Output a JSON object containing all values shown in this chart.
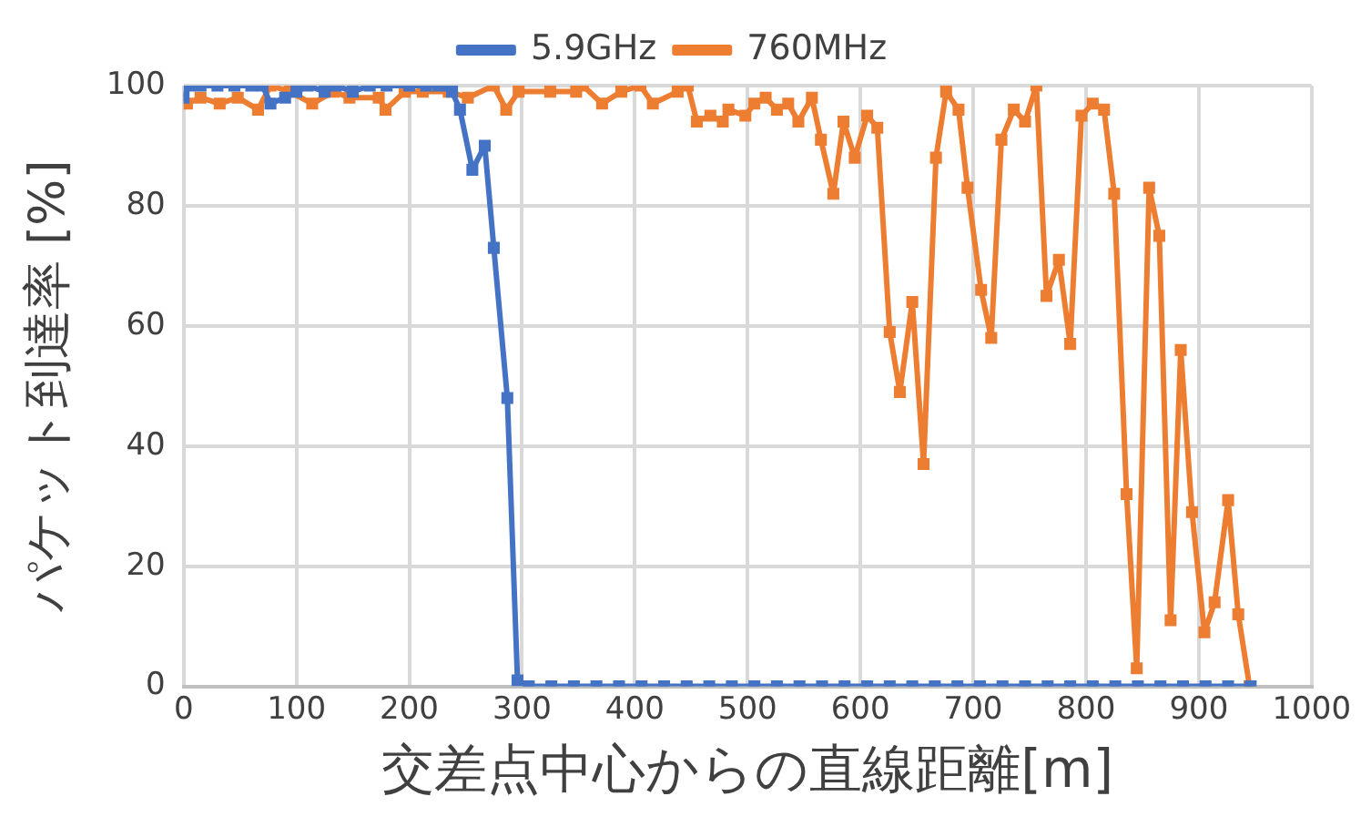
{
  "chart_data": {
    "type": "line",
    "xlabel": "交差点中心からの直線距離[m]",
    "ylabel": "パケット到達率 [%]",
    "xlim": [
      0,
      1000
    ],
    "xticks": [
      0,
      100,
      200,
      300,
      400,
      500,
      600,
      700,
      800,
      900,
      1000
    ],
    "ylim": [
      0,
      100
    ],
    "yticks": [
      0,
      20,
      40,
      60,
      80,
      100
    ],
    "grid": true,
    "legend": "top",
    "marker": "square",
    "line_style": "solid",
    "series": [
      {
        "name": "760MHz",
        "color": "#ed7d31",
        "x": [
          3,
          15,
          32,
          48,
          66,
          77,
          94,
          114,
          133,
          147,
          173,
          179,
          196,
          212,
          235,
          252,
          275,
          286,
          297,
          325,
          348,
          354,
          371,
          388,
          405,
          416,
          438,
          447,
          455,
          467,
          478,
          483,
          498,
          506,
          516,
          526,
          536,
          545,
          557,
          565,
          576,
          585,
          595,
          606,
          615,
          626,
          635,
          646,
          656,
          667,
          676,
          687,
          695,
          707,
          716,
          725,
          736,
          746,
          756,
          765,
          776,
          786,
          796,
          806,
          816,
          825,
          836,
          845,
          856,
          865,
          875,
          884,
          894,
          905,
          914,
          926,
          935,
          945
        ],
        "values": [
          97,
          98,
          97,
          98,
          96,
          100,
          99,
          97,
          99,
          98,
          98,
          96,
          99,
          99,
          99,
          98,
          100,
          96,
          99,
          99,
          99,
          100,
          97,
          99,
          100,
          97,
          99,
          100,
          94,
          95,
          94,
          96,
          95,
          97,
          98,
          96,
          97,
          94,
          98,
          91,
          82,
          94,
          88,
          95,
          93,
          59,
          49,
          64,
          37,
          88,
          99,
          96,
          83,
          66,
          58,
          91,
          96,
          94,
          100,
          65,
          71,
          57,
          95,
          97,
          96,
          82,
          32,
          3,
          83,
          75,
          11,
          56,
          29,
          9,
          14,
          31,
          12,
          0
        ]
      },
      {
        "name": "5.9GHz",
        "color": "#4472c4",
        "x": [
          0,
          5,
          15,
          30,
          45,
          60,
          70,
          77,
          90,
          100,
          110,
          125,
          135,
          150,
          165,
          180,
          200,
          215,
          226,
          238,
          245,
          256,
          267,
          275,
          287,
          296,
          306,
          326,
          346,
          366,
          386,
          406,
          426,
          446,
          466,
          486,
          506,
          526,
          546,
          566,
          586,
          606,
          626,
          646,
          666,
          686,
          706,
          726,
          746,
          766,
          786,
          806,
          826,
          846,
          866,
          886,
          906,
          926,
          946
        ],
        "values": [
          98,
          100,
          100,
          100,
          100,
          100,
          100,
          97,
          98,
          99,
          100,
          99,
          100,
          99,
          100,
          100,
          100,
          100,
          100,
          99,
          96,
          86,
          90,
          73,
          48,
          1,
          0,
          0,
          0,
          0,
          0,
          0,
          0,
          0,
          0,
          0,
          0,
          0,
          0,
          0,
          0,
          0,
          0,
          0,
          0,
          0,
          0,
          0,
          0,
          0,
          0,
          0,
          0,
          0,
          0,
          0,
          0,
          0,
          0
        ]
      }
    ]
  }
}
